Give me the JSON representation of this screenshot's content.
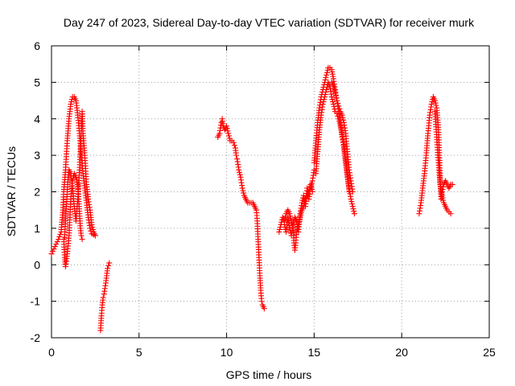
{
  "chart_data": {
    "type": "scatter",
    "title": "Day 247 of 2023, Sidereal Day-to-day VTEC variation (SDTVAR) for receiver murk",
    "xlabel": "GPS time / hours",
    "ylabel": "SDTVAR / TECUs",
    "xlim": [
      0,
      25
    ],
    "ylim": [
      -2,
      6
    ],
    "xticks": [
      0,
      5,
      10,
      15,
      20,
      25
    ],
    "yticks": [
      -2,
      -1,
      0,
      1,
      2,
      3,
      4,
      5,
      6
    ],
    "grid": true,
    "marker": "+",
    "color": "#ff0000",
    "series": [
      {
        "name": "SDTVAR",
        "segments": [
          [
            [
              0.0,
              0.3
            ],
            [
              0.2,
              0.5
            ],
            [
              0.4,
              0.7
            ],
            [
              0.55,
              0.9
            ],
            [
              0.65,
              1.5
            ],
            [
              0.7,
              2.0
            ],
            [
              0.8,
              2.6
            ],
            [
              0.9,
              3.4
            ],
            [
              1.0,
              4.0
            ],
            [
              1.1,
              4.4
            ],
            [
              1.2,
              4.6
            ],
            [
              1.3,
              4.6
            ],
            [
              1.4,
              4.5
            ],
            [
              1.5,
              4.1
            ],
            [
              1.6,
              3.6
            ],
            [
              1.7,
              3.0
            ],
            [
              1.8,
              2.5
            ],
            [
              1.9,
              2.1
            ],
            [
              2.0,
              1.7
            ],
            [
              2.1,
              1.3
            ],
            [
              2.2,
              1.0
            ],
            [
              2.3,
              0.85
            ],
            [
              2.5,
              0.8
            ]
          ],
          [
            [
              0.7,
              0.7
            ],
            [
              0.75,
              0.2
            ],
            [
              0.8,
              -0.05
            ],
            [
              0.85,
              0.1
            ],
            [
              0.9,
              0.3
            ],
            [
              1.0,
              0.8
            ],
            [
              1.05,
              1.3
            ],
            [
              1.1,
              1.8
            ],
            [
              1.2,
              2.3
            ],
            [
              1.3,
              2.5
            ],
            [
              1.4,
              2.4
            ],
            [
              1.5,
              2.2
            ],
            [
              1.55,
              1.8
            ],
            [
              1.6,
              1.4
            ],
            [
              1.65,
              1.0
            ],
            [
              1.7,
              0.8
            ],
            [
              1.75,
              0.7
            ]
          ],
          [
            [
              0.75,
              0.75
            ],
            [
              0.8,
              1.2
            ],
            [
              0.85,
              1.6
            ],
            [
              0.9,
              2.0
            ],
            [
              0.95,
              2.4
            ],
            [
              1.0,
              2.6
            ],
            [
              1.1,
              2.5
            ],
            [
              1.2,
              2.1
            ],
            [
              1.3,
              1.6
            ],
            [
              1.4,
              1.2
            ],
            [
              1.5,
              1.8
            ],
            [
              1.6,
              2.6
            ],
            [
              1.7,
              3.6
            ],
            [
              1.75,
              4.2
            ],
            [
              1.8,
              3.6
            ],
            [
              1.9,
              3.0
            ],
            [
              2.0,
              2.2
            ],
            [
              2.1,
              1.8
            ],
            [
              2.2,
              1.5
            ],
            [
              2.3,
              1.1
            ],
            [
              2.4,
              0.9
            ],
            [
              2.5,
              0.8
            ]
          ],
          [
            [
              2.8,
              -1.8
            ],
            [
              2.85,
              -1.4
            ],
            [
              2.9,
              -1.1
            ],
            [
              2.95,
              -0.9
            ],
            [
              3.0,
              -0.8
            ],
            [
              3.1,
              -0.5
            ],
            [
              3.15,
              -0.3
            ],
            [
              3.2,
              -0.1
            ],
            [
              3.3,
              0.05
            ]
          ],
          [
            [
              9.5,
              3.5
            ],
            [
              9.6,
              3.6
            ],
            [
              9.7,
              3.9
            ],
            [
              9.75,
              4.0
            ],
            [
              9.8,
              3.8
            ],
            [
              9.9,
              3.7
            ],
            [
              10.0,
              3.8
            ],
            [
              10.1,
              3.6
            ],
            [
              10.2,
              3.4
            ],
            [
              10.3,
              3.4
            ],
            [
              10.4,
              3.35
            ],
            [
              10.5,
              3.2
            ],
            [
              10.55,
              3.0
            ],
            [
              10.6,
              2.9
            ],
            [
              10.7,
              2.6
            ],
            [
              10.8,
              2.4
            ],
            [
              10.9,
              2.1
            ],
            [
              11.0,
              1.9
            ],
            [
              11.1,
              1.8
            ],
            [
              11.2,
              1.7
            ],
            [
              11.3,
              1.7
            ],
            [
              11.4,
              1.7
            ],
            [
              11.5,
              1.7
            ],
            [
              11.6,
              1.6
            ],
            [
              11.7,
              1.5
            ],
            [
              11.75,
              1.2
            ],
            [
              11.8,
              0.7
            ],
            [
              11.85,
              0.2
            ],
            [
              11.9,
              -0.3
            ],
            [
              11.95,
              -0.7
            ],
            [
              12.0,
              -1.0
            ],
            [
              12.05,
              -1.1
            ],
            [
              12.1,
              -1.15
            ],
            [
              12.15,
              -1.2
            ]
          ],
          [
            [
              13.0,
              0.9
            ],
            [
              13.1,
              1.1
            ],
            [
              13.2,
              1.3
            ],
            [
              13.3,
              1.2
            ],
            [
              13.4,
              1.4
            ],
            [
              13.5,
              1.5
            ],
            [
              13.6,
              1.4
            ],
            [
              13.7,
              1.2
            ],
            [
              13.8,
              1.0
            ],
            [
              13.85,
              0.6
            ],
            [
              13.9,
              0.4
            ],
            [
              13.95,
              0.6
            ],
            [
              14.0,
              0.9
            ],
            [
              14.1,
              1.1
            ],
            [
              14.2,
              1.3
            ],
            [
              14.3,
              1.5
            ],
            [
              14.4,
              1.6
            ],
            [
              14.5,
              1.8
            ],
            [
              14.6,
              1.9
            ],
            [
              14.7,
              2.0
            ],
            [
              14.8,
              2.1
            ],
            [
              14.9,
              2.3
            ],
            [
              15.0,
              2.6
            ]
          ],
          [
            [
              13.3,
              1.1
            ],
            [
              13.4,
              0.9
            ],
            [
              13.5,
              1.3
            ],
            [
              13.6,
              1.0
            ],
            [
              13.7,
              0.8
            ],
            [
              13.8,
              1.1
            ],
            [
              13.9,
              1.3
            ],
            [
              14.0,
              1.2
            ],
            [
              14.1,
              0.9
            ],
            [
              14.2,
              1.4
            ],
            [
              14.3,
              1.7
            ],
            [
              14.4,
              1.9
            ],
            [
              14.5,
              1.6
            ],
            [
              14.6,
              2.1
            ],
            [
              14.7,
              1.8
            ],
            [
              14.8,
              2.2
            ],
            [
              14.9,
              2.0
            ]
          ],
          [
            [
              15.0,
              2.8
            ],
            [
              15.1,
              3.4
            ],
            [
              15.2,
              3.9
            ],
            [
              15.3,
              4.3
            ],
            [
              15.4,
              4.6
            ],
            [
              15.5,
              4.8
            ],
            [
              15.6,
              5.0
            ],
            [
              15.7,
              5.2
            ],
            [
              15.8,
              5.4
            ],
            [
              15.9,
              5.4
            ],
            [
              16.0,
              5.35
            ],
            [
              16.1,
              5.1
            ],
            [
              16.2,
              4.8
            ],
            [
              16.3,
              4.5
            ],
            [
              16.4,
              4.2
            ],
            [
              16.5,
              3.9
            ],
            [
              16.6,
              3.5
            ],
            [
              16.7,
              3.2
            ],
            [
              16.8,
              2.8
            ],
            [
              16.9,
              2.4
            ],
            [
              17.0,
              2.1
            ],
            [
              17.1,
              1.8
            ],
            [
              17.2,
              1.6
            ],
            [
              17.3,
              1.4
            ]
          ],
          [
            [
              15.1,
              2.5
            ],
            [
              15.2,
              3.1
            ],
            [
              15.3,
              3.7
            ],
            [
              15.4,
              4.1
            ],
            [
              15.5,
              4.4
            ],
            [
              15.6,
              4.6
            ],
            [
              15.7,
              4.8
            ],
            [
              15.8,
              5.0
            ],
            [
              15.9,
              4.9
            ],
            [
              16.0,
              4.6
            ],
            [
              16.1,
              4.4
            ],
            [
              16.2,
              4.2
            ],
            [
              16.3,
              4.15
            ],
            [
              16.4,
              4.0
            ],
            [
              16.5,
              3.8
            ],
            [
              16.6,
              3.6
            ],
            [
              16.7,
              3.3
            ],
            [
              16.8,
              2.9
            ],
            [
              16.9,
              2.5
            ],
            [
              17.0,
              2.0
            ]
          ],
          [
            [
              16.0,
              5.0
            ],
            [
              16.1,
              4.9
            ],
            [
              16.2,
              4.7
            ],
            [
              16.3,
              4.5
            ],
            [
              16.4,
              4.35
            ],
            [
              16.5,
              4.2
            ],
            [
              16.6,
              4.1
            ],
            [
              16.7,
              3.9
            ],
            [
              16.8,
              3.6
            ],
            [
              16.9,
              3.1
            ],
            [
              17.0,
              2.6
            ],
            [
              17.1,
              2.3
            ],
            [
              17.2,
              2.0
            ]
          ],
          [
            [
              21.0,
              1.4
            ],
            [
              21.1,
              1.7
            ],
            [
              21.2,
              2.1
            ],
            [
              21.3,
              2.5
            ],
            [
              21.4,
              3.0
            ],
            [
              21.5,
              3.6
            ],
            [
              21.6,
              4.1
            ],
            [
              21.7,
              4.4
            ],
            [
              21.8,
              4.6
            ],
            [
              21.9,
              4.5
            ],
            [
              22.0,
              4.3
            ],
            [
              22.1,
              3.7
            ],
            [
              22.15,
              3.0
            ],
            [
              22.2,
              2.3
            ],
            [
              22.25,
              1.8
            ],
            [
              22.3,
              2.0
            ],
            [
              22.4,
              2.2
            ],
            [
              22.5,
              2.3
            ],
            [
              22.6,
              2.2
            ],
            [
              22.7,
              2.1
            ],
            [
              22.8,
              2.2
            ],
            [
              22.9,
              2.2
            ]
          ],
          [
            [
              21.9,
              4.2
            ],
            [
              22.0,
              3.5
            ],
            [
              22.1,
              2.8
            ],
            [
              22.2,
              2.2
            ],
            [
              22.3,
              1.9
            ],
            [
              22.4,
              1.7
            ],
            [
              22.5,
              1.6
            ],
            [
              22.6,
              1.5
            ],
            [
              22.7,
              1.45
            ],
            [
              22.8,
              1.4
            ]
          ]
        ]
      }
    ]
  }
}
